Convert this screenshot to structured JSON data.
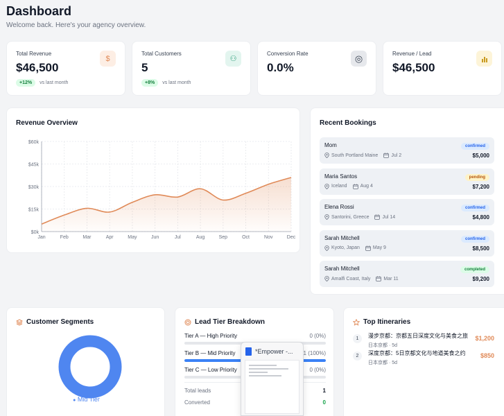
{
  "header": {
    "title": "Dashboard",
    "subtitle": "Welcome back. Here's your agency overview."
  },
  "stats": [
    {
      "label": "Total Revenue",
      "value": "$46,500",
      "pill": "+12%",
      "trend": "vs last month",
      "icon": "dollar-icon",
      "icon_glyph": "$",
      "icon_bg": "#fdeee4",
      "icon_color": "#e08a58"
    },
    {
      "label": "Total Customers",
      "value": "5",
      "pill": "+8%",
      "trend": "vs last month",
      "icon": "users-icon",
      "icon_glyph": "⚇",
      "icon_bg": "#e3f5ef",
      "icon_color": "#2f9e7a"
    },
    {
      "label": "Conversion Rate",
      "value": "0.0%",
      "icon": "target-icon",
      "icon_glyph": "◎",
      "icon_bg": "#e6e8ec",
      "icon_color": "#374151"
    },
    {
      "label": "Revenue / Lead",
      "value": "$46,500",
      "icon": "bar-chart-icon",
      "icon_glyph": "▮",
      "icon_bg": "#fdf4d8",
      "icon_color": "#c99a1e"
    }
  ],
  "revenue": {
    "title": "Revenue Overview",
    "chart_data": {
      "type": "area",
      "categories": [
        "Jan",
        "Feb",
        "Mar",
        "Apr",
        "May",
        "Jun",
        "Jul",
        "Aug",
        "Sep",
        "Oct",
        "Nov",
        "Dec"
      ],
      "values": [
        5000,
        11000,
        15500,
        13000,
        19500,
        24500,
        23000,
        28500,
        21000,
        25500,
        31500,
        36000
      ],
      "yticks": [
        "$0k",
        "$15k",
        "$30k",
        "$45k",
        "$60k"
      ],
      "ylim": [
        0,
        60000
      ],
      "color": "#e08a58",
      "grid": true
    }
  },
  "bookings": {
    "title": "Recent Bookings",
    "items": [
      {
        "name": "Mom",
        "location": "South Portland Maine",
        "date": "Jul 2",
        "status": "confirmed",
        "amount": "$5,000"
      },
      {
        "name": "Maria Santos",
        "location": "Iceland",
        "date": "Aug 4",
        "status": "pending",
        "amount": "$7,200"
      },
      {
        "name": "Elena Rossi",
        "location": "Santorini, Greece",
        "date": "Jul 14",
        "status": "confirmed",
        "amount": "$4,800"
      },
      {
        "name": "Sarah Mitchell",
        "location": "Kyoto, Japan",
        "date": "May 9",
        "status": "confirmed",
        "amount": "$8,500"
      },
      {
        "name": "Sarah Mitchell",
        "location": "Amalfi Coast, Italy",
        "date": "Mar 11",
        "status": "completed",
        "amount": "$9,200"
      }
    ]
  },
  "segments": {
    "title": "Customer Segments",
    "legend": "Mid Tier",
    "chart_data": {
      "type": "pie",
      "categories": [
        "Mid Tier"
      ],
      "values": [
        100
      ],
      "color": "#4f86f0"
    }
  },
  "tiers": {
    "title": "Lead Tier Breakdown",
    "rows": [
      {
        "label": "Tier A — High Priority",
        "pct": "0 (0%)",
        "value": 0
      },
      {
        "label": "Tier B — Mid Priority",
        "pct": "1 (100%)",
        "value": 1
      },
      {
        "label": "Tier C — Low Priority",
        "pct": "0 (0%)",
        "value": 0
      }
    ],
    "total_label": "Total leads",
    "total_value": "1",
    "converted_label": "Converted",
    "converted_value": "0"
  },
  "itineraries": {
    "title": "Top Itineraries",
    "items": [
      {
        "rank": "1",
        "title": "漫步京都：京都五日深度文化与美食之旅",
        "sub": "日本京都 · 5d",
        "price": "$1,200"
      },
      {
        "rank": "2",
        "title": "深度京都：5日京都文化与地道美食之约",
        "sub": "日本京都 · 5d",
        "price": "$850"
      }
    ]
  },
  "popup": {
    "title": "*Empower -..."
  }
}
